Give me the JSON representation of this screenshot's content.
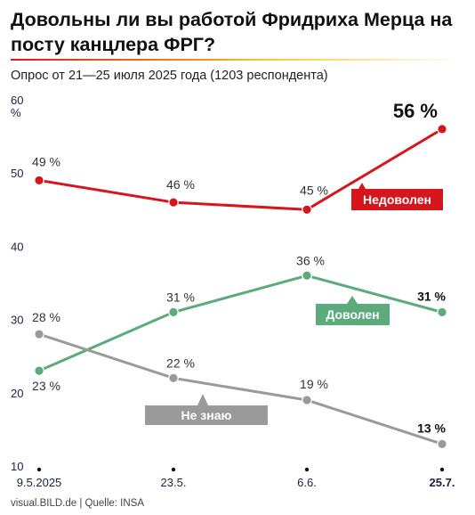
{
  "header": {
    "title": "Довольны ли вы работой Фридриха Мерца на посту канцлера ФРГ?",
    "subtitle": "Опрос от 21—25 июля 2025 года (1203 респондента)"
  },
  "footer": {
    "source": "visual.BILD.de | Quelle: INSA"
  },
  "chart_data": {
    "type": "line",
    "x": [
      "9.5.2025",
      "23.5.",
      "6.6.",
      "25.7."
    ],
    "y_ticks": [
      10,
      20,
      30,
      40,
      50,
      60
    ],
    "y_unit": "%",
    "ylim": [
      10,
      60
    ],
    "grid": false,
    "series": [
      {
        "name": "Недоволен",
        "color": "#d6151c",
        "values": [
          49,
          46,
          45,
          56
        ],
        "labels": [
          "49 %",
          "46 %",
          "45 %",
          "56 %"
        ]
      },
      {
        "name": "Доволен",
        "color": "#5bab7d",
        "values": [
          23,
          31,
          36,
          31
        ],
        "labels": [
          "23 %",
          "31 %",
          "36 %",
          "31 %"
        ]
      },
      {
        "name": "Не знаю",
        "color": "#9a9a9a",
        "values": [
          28,
          22,
          19,
          13
        ],
        "labels": [
          "28 %",
          "22 %",
          "19 %",
          "13 %"
        ]
      }
    ]
  }
}
